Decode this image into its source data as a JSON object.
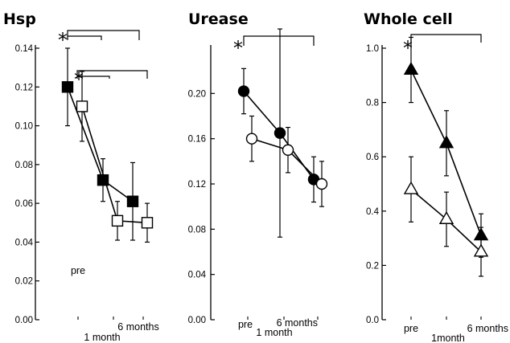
{
  "chart_data": [
    {
      "type": "line",
      "title": "Hsp",
      "ylim": [
        0,
        0.14
      ],
      "y_ticks": [
        "0.00",
        "0.02",
        "0.04",
        "0.06",
        "0.08",
        "0.10",
        "0.12",
        "0.14"
      ],
      "x_ticks": [
        "pre",
        "1 month",
        "6 months"
      ],
      "significance": "*",
      "series": [
        {
          "marker": "square",
          "fill": "#000000",
          "values": [
            0.12,
            0.072,
            0.061
          ],
          "err": [
            0.02,
            0.011,
            0.02
          ]
        },
        {
          "marker": "square",
          "fill": "#ffffff",
          "values": [
            0.11,
            0.051,
            0.05
          ],
          "err": [
            0.018,
            0.01,
            0.01
          ]
        }
      ]
    },
    {
      "type": "line",
      "title": "Urease",
      "ylim": [
        0,
        0.24
      ],
      "y_ticks": [
        "0.00",
        "0.04",
        "0.08",
        "0.12",
        "0.16",
        "0.20"
      ],
      "x_ticks": [
        "pre",
        "1 month",
        "6 months"
      ],
      "significance": "*",
      "series": [
        {
          "marker": "circle",
          "fill": "#000000",
          "values": [
            0.202,
            0.165,
            0.124
          ],
          "err": [
            0.02,
            0.092,
            0.02
          ]
        },
        {
          "marker": "circle",
          "fill": "#ffffff",
          "values": [
            0.16,
            0.15,
            0.12
          ],
          "err": [
            0.02,
            0.02,
            0.02
          ]
        }
      ]
    },
    {
      "type": "line",
      "title": "Whole cell",
      "ylim": [
        0,
        1.0
      ],
      "y_ticks": [
        "0.0",
        "0.2",
        "0.4",
        "0.6",
        "0.8",
        "1.0"
      ],
      "x_ticks": [
        "pre",
        "1month",
        "6 months"
      ],
      "significance": "*",
      "series": [
        {
          "marker": "triangle",
          "fill": "#000000",
          "values": [
            0.92,
            0.65,
            0.31
          ],
          "err": [
            0.12,
            0.12,
            0.08
          ]
        },
        {
          "marker": "triangle",
          "fill": "#ffffff",
          "values": [
            0.48,
            0.37,
            0.25
          ],
          "err": [
            0.12,
            0.1,
            0.09
          ]
        }
      ]
    }
  ]
}
